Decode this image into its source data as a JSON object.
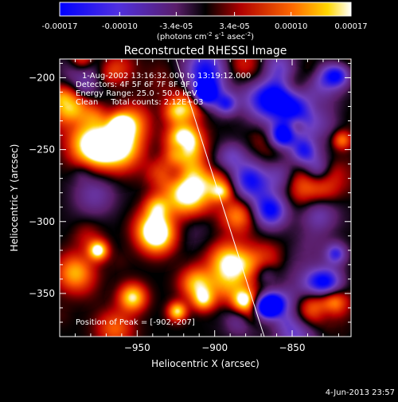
{
  "colorbar": {
    "tick_labels": [
      "-0.00017",
      "-0.00010",
      "-3.4e-05",
      "3.4e-05",
      "0.00010",
      "0.00017"
    ],
    "tick_values": [
      -0.00017,
      -0.0001,
      -3.4e-05,
      3.4e-05,
      0.0001,
      0.00017
    ],
    "range": [
      -0.00017,
      0.00017
    ],
    "units_main": "(photons cm",
    "units_sup1": "-2",
    "units_mid": " s",
    "units_sup2": "-1",
    "units_end": " asec",
    "units_sup3": "-2",
    "units_close": ")"
  },
  "chart_data": {
    "type": "heatmap",
    "title": "Reconstructed RHESSI Image",
    "xlabel": "Heliocentric X (arcsec)",
    "ylabel": "Heliocentric Y (arcsec)",
    "xlim": [
      -1000,
      -812
    ],
    "ylim": [
      -380,
      -187
    ],
    "x_ticks": [
      -950,
      -900,
      -850
    ],
    "x_tick_labels": [
      "−950",
      "−900",
      "−850"
    ],
    "y_ticks": [
      -200,
      -250,
      -300,
      -350
    ],
    "y_tick_labels": [
      "−200",
      "−250",
      "−300",
      "−350"
    ],
    "limb_line": {
      "x": [
        -925,
        -868
      ],
      "y": [
        -187,
        -380
      ]
    },
    "annotations": [
      "1-Aug-2002 13:16:32.000 to 13:19:12.000",
      "Detectors: 4F 5F 6F 7F 8F 9F 0",
      "Energy Range: 25.0 - 50.0 keV",
      "Clean     Total counts: 2.12E+03",
      "Position of Peak = [-902,-207]"
    ],
    "peak_position": [
      -902,
      -207
    ],
    "colormap": [
      "#0000ff",
      "#7040c0",
      "#5a1e6a",
      "#000000",
      "#bb0000",
      "#ff6000",
      "#ffd000",
      "#ffffff"
    ]
  },
  "footer": {
    "date": "4-Jun-2013 23:57"
  }
}
